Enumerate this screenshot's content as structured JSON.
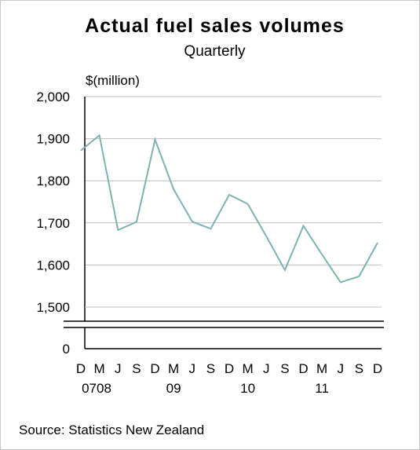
{
  "chart_data": {
    "type": "line",
    "title": "Actual fuel sales volumes",
    "subtitle": "Quarterly",
    "ylabel": "$(million)",
    "xlabel": "",
    "ylim": [
      1500,
      2000
    ],
    "axis_break": true,
    "zero_label": "0",
    "y_ticks": [
      1500,
      1600,
      1700,
      1800,
      1900,
      2000
    ],
    "y_tick_labels": [
      "1,500",
      "1,600",
      "1,700",
      "1,800",
      "1,900",
      "2,000"
    ],
    "grid": "horizontal",
    "categories": [
      "D",
      "M",
      "J",
      "S",
      "D",
      "M",
      "J",
      "S",
      "D",
      "M",
      "J",
      "S",
      "D",
      "M",
      "J",
      "S",
      "D"
    ],
    "year_labels": [
      {
        "at": 0,
        "text": "0708"
      },
      {
        "at": 5,
        "text": "09"
      },
      {
        "at": 9,
        "text": "10"
      },
      {
        "at": 13,
        "text": "11"
      }
    ],
    "series": [
      {
        "color": "#7fb2b2",
        "values": [
          1872,
          1908,
          1683,
          1702,
          1898,
          1780,
          1703,
          1686,
          1767,
          1745,
          1668,
          1588,
          1693,
          1625,
          1559,
          1573,
          1653
        ]
      }
    ]
  },
  "source": "Source: Statistics New Zealand",
  "colors": {
    "line": "#7fb2b2",
    "grid": "#c0c0c0",
    "axis": "#000000"
  }
}
